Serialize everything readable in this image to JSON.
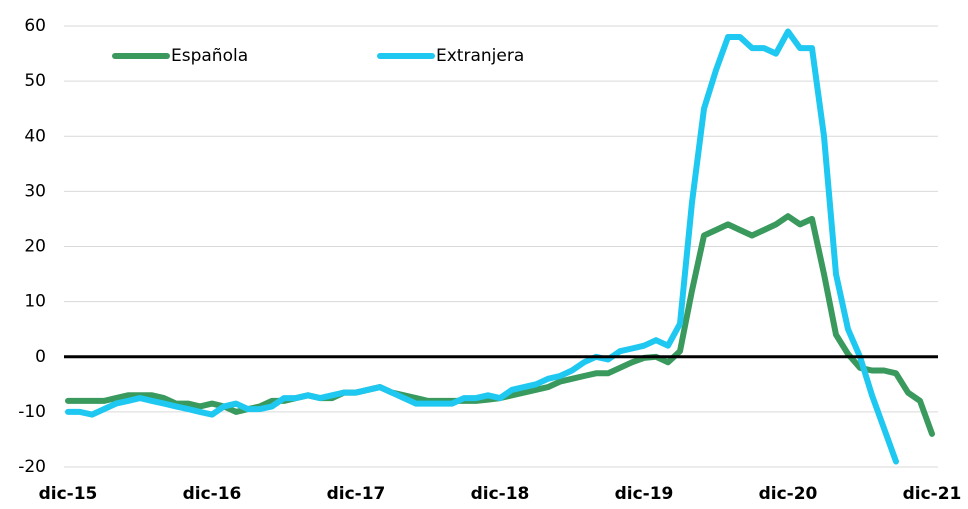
{
  "chart_data": {
    "type": "line",
    "categories": [
      "dic-15",
      null,
      null,
      null,
      null,
      null,
      null,
      null,
      null,
      null,
      null,
      null,
      "dic-16",
      null,
      null,
      null,
      null,
      null,
      null,
      null,
      null,
      null,
      null,
      null,
      "dic-17",
      null,
      null,
      null,
      null,
      null,
      null,
      null,
      null,
      null,
      null,
      null,
      "dic-18",
      null,
      null,
      null,
      null,
      null,
      null,
      null,
      null,
      null,
      null,
      null,
      "dic-19",
      null,
      null,
      null,
      null,
      null,
      null,
      null,
      null,
      null,
      null,
      null,
      "dic-20",
      null,
      null,
      null,
      null,
      null,
      null,
      null,
      null,
      null,
      null,
      null,
      "dic-21"
    ],
    "series": [
      {
        "name": "Española",
        "color": "#3a9a5e",
        "values": [
          -8,
          -8,
          -8,
          -8,
          -7.5,
          -7,
          -7,
          -7,
          -7.5,
          -8.5,
          -8.5,
          -9,
          -8.5,
          -9,
          -10,
          -9.5,
          -9,
          -8,
          -8,
          -7.5,
          -7,
          -7.5,
          -7.5,
          -6.5,
          -6.5,
          -6,
          -5.5,
          -6.5,
          -7,
          -7.5,
          -8,
          -8,
          -8,
          -8,
          -8,
          -7.8,
          -7.5,
          -7,
          -6.5,
          -6,
          -5.5,
          -4.5,
          -4,
          -3.5,
          -3,
          -3,
          -2,
          -1,
          -0.2,
          0,
          -1,
          1,
          12,
          22,
          23,
          24,
          23,
          22,
          23,
          24,
          25.5,
          24,
          25,
          15,
          4,
          0.5,
          -2,
          -2.5,
          -2.5,
          -3,
          -6.5,
          -8,
          -14
        ]
      },
      {
        "name": "Extranjera",
        "color": "#1ec8f0",
        "values": [
          -10,
          -10,
          -10.5,
          -9.5,
          -8.5,
          -8,
          -7.5,
          -8,
          -8.5,
          -9,
          -9.5,
          -10,
          -10.5,
          -9,
          -8.5,
          -9.5,
          -9.5,
          -9,
          -7.5,
          -7.5,
          -7,
          -7.5,
          -7,
          -6.5,
          -6.5,
          -6,
          -5.5,
          -6.5,
          -7.5,
          -8.5,
          -8.5,
          -8.5,
          -8.5,
          -7.5,
          -7.5,
          -7,
          -7.5,
          -6,
          -5.5,
          -5,
          -4,
          -3.5,
          -2.5,
          -1,
          0,
          -0.5,
          1,
          1.5,
          2,
          3,
          2,
          6,
          28,
          45,
          52,
          58,
          58,
          56,
          56,
          55,
          59,
          56,
          56,
          40,
          15,
          5,
          0,
          -7,
          -13,
          -19,
          null,
          null,
          null
        ]
      }
    ],
    "ylim": [
      -20,
      60
    ],
    "yticks": [
      -20,
      -10,
      0,
      10,
      20,
      30,
      40,
      50,
      60
    ],
    "grid": true,
    "legend": "top-left"
  }
}
